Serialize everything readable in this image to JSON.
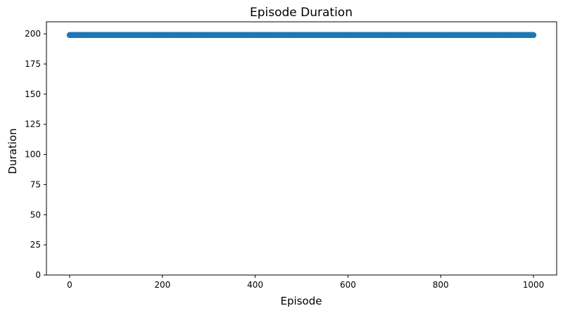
{
  "chart_data": {
    "type": "scatter",
    "title": "Episode Duration",
    "xlabel": "Episode",
    "ylabel": "Duration",
    "xlim": [
      -50,
      1050
    ],
    "ylim": [
      0,
      210
    ],
    "xticks": [
      0,
      200,
      400,
      600,
      800,
      1000
    ],
    "yticks": [
      0,
      25,
      50,
      75,
      100,
      125,
      150,
      175,
      200
    ],
    "grid": false,
    "series": [
      {
        "x_start": 0,
        "x_end": 1000,
        "x_step": 1,
        "y": 199,
        "color": "#1f77b4"
      }
    ]
  }
}
